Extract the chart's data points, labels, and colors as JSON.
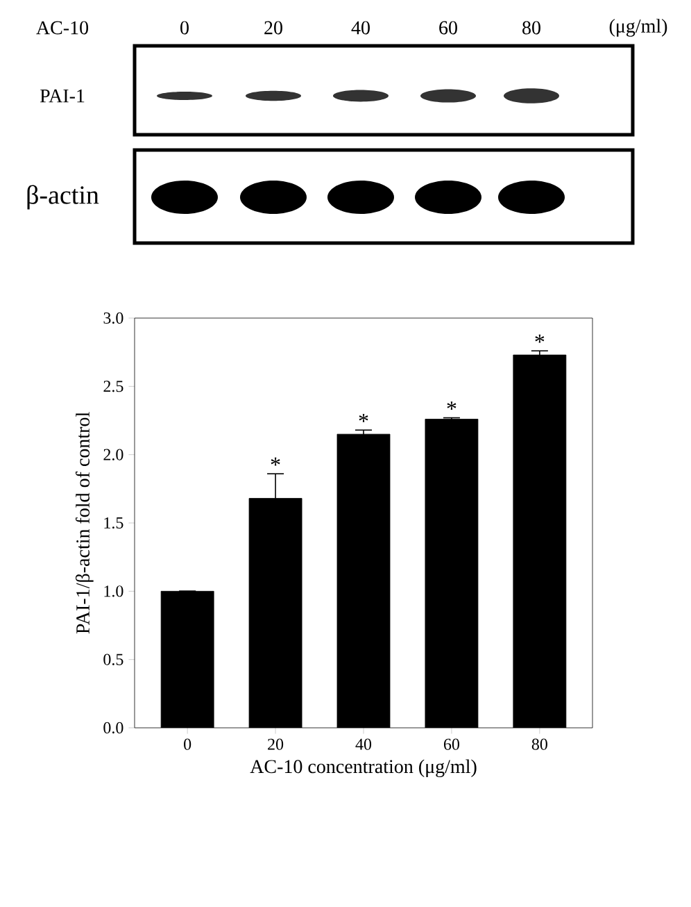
{
  "chart_data": {
    "type": "bar",
    "xlabel": "AC-10 concentration (μg/ml)",
    "ylabel": "PAI-1/β-actin fold of control",
    "categories": [
      "0",
      "20",
      "40",
      "60",
      "80"
    ],
    "values": [
      1.0,
      1.68,
      2.15,
      2.26,
      2.73
    ],
    "errors": [
      null,
      0.18,
      0.03,
      0.01,
      0.03
    ],
    "color": "#000000",
    "ylim": [
      0,
      3
    ],
    "yticks": [
      {
        "value": 0,
        "label": "0.0"
      },
      {
        "value": 0.5,
        "label": "0.5"
      },
      {
        "value": 1,
        "label": "1.0"
      },
      {
        "value": 1.5,
        "label": "1.5"
      },
      {
        "value": 2,
        "label": "2.0"
      },
      {
        "value": 2.5,
        "label": "2.5"
      },
      {
        "value": 3,
        "label": "3.0"
      }
    ],
    "grid": false,
    "annotations": [
      "AC-10",
      "0",
      "20",
      "40",
      "60",
      "80",
      "(μg/ml)",
      "PAI-1",
      "β-actin",
      {
        "text": "*",
        "x": "20",
        "y": 1.86
      },
      {
        "text": "*",
        "x": "40",
        "y": 2.18
      },
      {
        "text": "*",
        "x": "60",
        "y": 2.27
      },
      {
        "text": "*",
        "x": "80",
        "y": 2.76
      }
    ]
  }
}
